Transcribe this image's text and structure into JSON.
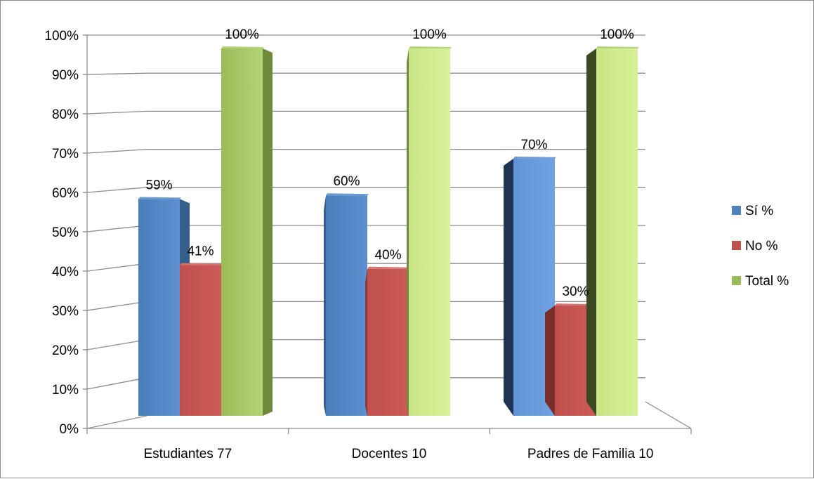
{
  "chart_data": {
    "type": "bar",
    "subtype": "3d-clustered-column",
    "title": "",
    "xlabel": "",
    "ylabel": "",
    "categories": [
      "Estudiantes 77",
      "Docentes 10",
      "Padres de Familia 10"
    ],
    "series": [
      {
        "name": "Sí %",
        "values": [
          59,
          60,
          70
        ],
        "labels": [
          "59%",
          "60%",
          "70%"
        ],
        "color": "#4f81bd"
      },
      {
        "name": "No %",
        "values": [
          41,
          40,
          30
        ],
        "labels": [
          "41%",
          "40%",
          "30%"
        ],
        "color": "#c0504d"
      },
      {
        "name": "Total %",
        "values": [
          100,
          100,
          100
        ],
        "labels": [
          "100%",
          "100%",
          "100%"
        ],
        "color": "#9bbb59"
      }
    ],
    "y_ticks": [
      "0%",
      "10%",
      "20%",
      "30%",
      "40%",
      "50%",
      "60%",
      "70%",
      "80%",
      "90%",
      "100%"
    ],
    "ylim": [
      0,
      100
    ],
    "grid": true,
    "legend_position": "right"
  }
}
